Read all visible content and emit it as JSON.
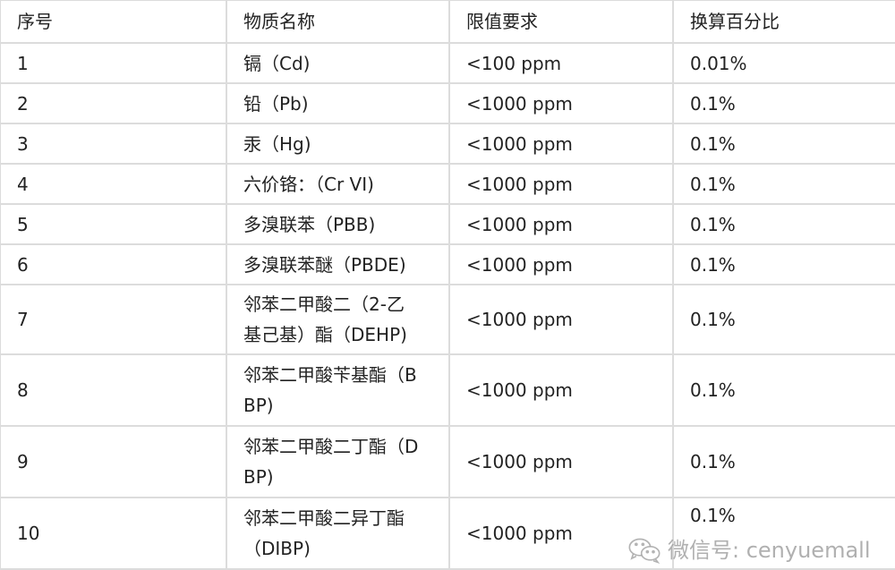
{
  "headers": [
    "序号",
    "物质名称",
    "限值要求",
    "换算百分比"
  ],
  "rows": [
    [
      "1",
      "镉（Cd)",
      "<100 ppm",
      "0.01%"
    ],
    [
      "2",
      "铅（Pb)",
      "<1000 ppm",
      "0.1%"
    ],
    [
      "3",
      "汞（Hg)",
      "<1000 ppm",
      "0.1%"
    ],
    [
      "4",
      "六价铬：（Cr VI)",
      "<1000 ppm",
      "0.1%"
    ],
    [
      "5",
      "多溴联苯（PBB)",
      "<1000 ppm",
      "0.1%"
    ],
    [
      "6",
      "多溴联苯醚（PBDE)",
      "<1000 ppm",
      "0.1%"
    ],
    [
      "7",
      "邻苯二甲酸二（2-乙基己基）酯（DEHP)",
      "<1000 ppm",
      "0.1%"
    ],
    [
      "8",
      "邻苯二甲酸苄基酯（BBP)",
      "<1000 ppm",
      "0.1%"
    ],
    [
      "9",
      "邻苯二甲酸二丁酯（DBP)",
      "<1000 ppm",
      "0.1%"
    ],
    [
      "10",
      "邻苯二甲酸二异丁酯（DIBP)",
      "<1000 ppm",
      "0.1%"
    ]
  ],
  "watermark": {
    "text": "微信号: cenyuemall",
    "icon": "wechat-icon"
  }
}
